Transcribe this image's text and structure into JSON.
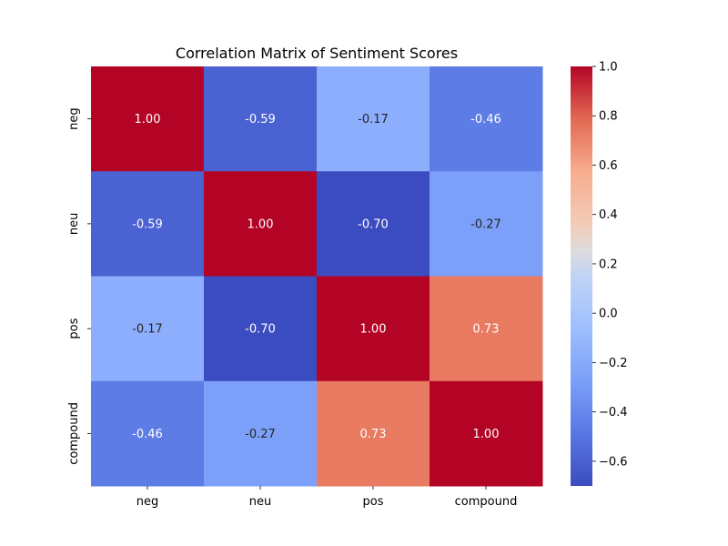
{
  "chart_data": {
    "type": "heatmap",
    "title": "Correlation Matrix of Sentiment Scores",
    "x_labels": [
      "neg",
      "neu",
      "pos",
      "compound"
    ],
    "y_labels": [
      "neg",
      "neu",
      "pos",
      "compound"
    ],
    "values": [
      [
        1.0,
        -0.59,
        -0.17,
        -0.46
      ],
      [
        -0.59,
        1.0,
        -0.7,
        -0.27
      ],
      [
        -0.17,
        -0.7,
        1.0,
        0.73
      ],
      [
        -0.46,
        -0.27,
        0.73,
        1.0
      ]
    ],
    "annotation_format": "0.00",
    "colormap": "coolwarm",
    "vmin": -0.7,
    "vmax": 1.0,
    "colorbar": {
      "ticks": [
        1.0,
        0.8,
        0.6,
        0.4,
        0.2,
        0.0,
        -0.2,
        -0.4,
        -0.6
      ],
      "tick_labels": [
        "1.0",
        "0.8",
        "0.6",
        "0.4",
        "0.2",
        "0.0",
        "−0.2",
        "−0.4",
        "−0.6"
      ]
    }
  }
}
